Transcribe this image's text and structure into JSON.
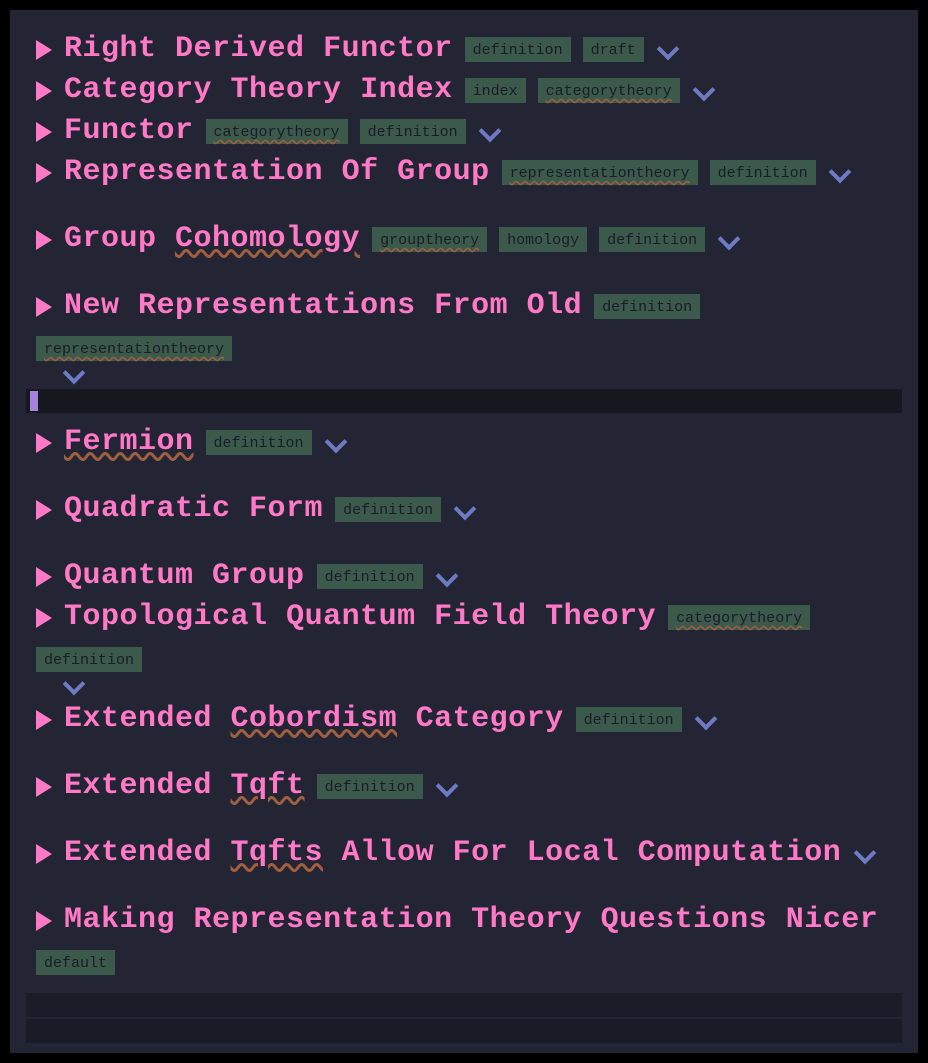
{
  "colors": {
    "bg_outer": "#000000",
    "bg_panel": "#232534",
    "title": "#ff79c6",
    "tag_bg": "#3b5a4b",
    "tag_fg": "#1a1c28",
    "chevron": "#6d7bc5",
    "cursor": "#a583d9",
    "cursor_line_bg": "#16171f"
  },
  "entries": [
    {
      "title": "Right Derived Functor",
      "tags": [
        "definition",
        "draft"
      ],
      "gap": false,
      "wrapChevron": false
    },
    {
      "title": "Category Theory Index",
      "tags": [
        "index",
        "categorytheory"
      ],
      "gap": false,
      "wrapChevron": false
    },
    {
      "title": "Functor",
      "tags": [
        "categorytheory",
        "definition"
      ],
      "gap": false,
      "wrapChevron": false
    },
    {
      "title": "Representation Of Group",
      "tags": [
        "representationtheory",
        "definition"
      ],
      "gap": true,
      "wrapChevron": false
    },
    {
      "title": "Group Cohomology",
      "tags": [
        "grouptheory",
        "homology",
        "definition"
      ],
      "gap": true,
      "wrapChevron": false
    },
    {
      "title": "New Representations From Old",
      "tags": [
        "definition",
        "representationtheory"
      ],
      "gap": false,
      "wrapChevron": true
    },
    {
      "cursor": true
    },
    {
      "title": "Fermion",
      "tags": [
        "definition"
      ],
      "gap": true,
      "wrapChevron": false
    },
    {
      "title": "Quadratic Form",
      "tags": [
        "definition"
      ],
      "gap": true,
      "wrapChevron": false
    },
    {
      "title": "Quantum Group",
      "tags": [
        "definition"
      ],
      "gap": false,
      "wrapChevron": false
    },
    {
      "title": "Topological Quantum Field Theory",
      "tags": [
        "categorytheory",
        "definition"
      ],
      "gap": false,
      "wrapChevron": true
    },
    {
      "title": "Extended Cobordism Category",
      "tags": [
        "definition"
      ],
      "gap": true,
      "wrapChevron": false
    },
    {
      "title": "Extended Tqft",
      "tags": [
        "definition"
      ],
      "gap": true,
      "wrapChevron": false
    },
    {
      "title": "Extended Tqfts Allow For Local Computation",
      "tags": [],
      "gap": true,
      "wrapChevron": false
    },
    {
      "title": "Making Representation Theory Questions Nicer",
      "tags": [
        "default"
      ],
      "gap": false,
      "noChevron": true,
      "wrapChevron": false
    }
  ],
  "underlinedTags": [
    "categorytheory",
    "representationtheory",
    "grouptheory"
  ],
  "underlinedTitleWords": [
    "Cohomology",
    "Fermion",
    "Cobordism",
    "Tqft",
    "Tqfts"
  ]
}
